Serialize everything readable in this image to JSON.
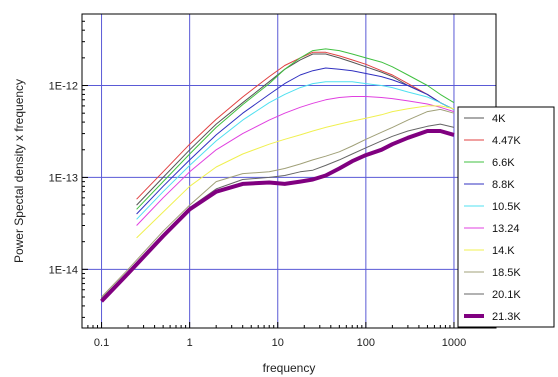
{
  "chart_data": {
    "type": "line",
    "xlabel": "frequency",
    "ylabel": "Power Spectal density x frequency",
    "xscale": "log",
    "yscale": "log",
    "xlim": [
      0.06,
      3000
    ],
    "ylim": [
      2.3e-15,
      6e-12
    ],
    "x_ticks": [
      0.1,
      1,
      10,
      100,
      1000
    ],
    "x_tick_labels": [
      "0.1",
      "1",
      "10",
      "100",
      "1000"
    ],
    "y_ticks": [
      1e-14,
      1e-13,
      1e-12
    ],
    "y_tick_labels": [
      "1E-14",
      "1E-13",
      "1E-12"
    ],
    "grid": true,
    "grid_color": "#5a5ad6",
    "legend_position": "right",
    "series": [
      {
        "name": "4K",
        "color": "#555555",
        "width": 1,
        "x": [
          0.25,
          0.5,
          1,
          2,
          4,
          8,
          12,
          18,
          25,
          35,
          50,
          70,
          100,
          150,
          200,
          300,
          500,
          700,
          1000
        ],
        "y": [
          5e-14,
          1e-13,
          2e-13,
          3.8e-13,
          6.5e-13,
          1.1e-12,
          1.5e-12,
          1.9e-12,
          2.2e-12,
          2.2e-12,
          2e-12,
          1.8e-12,
          1.6e-12,
          1.4e-12,
          1.25e-12,
          1e-12,
          8e-13,
          6.5e-13,
          5.5e-13
        ]
      },
      {
        "name": "4.47K",
        "color": "#e04040",
        "width": 1,
        "x": [
          0.25,
          0.5,
          1,
          2,
          4,
          8,
          12,
          18,
          25,
          35,
          50,
          70,
          100,
          150,
          200,
          300,
          500,
          700,
          1000
        ],
        "y": [
          5.8e-14,
          1.15e-13,
          2.3e-13,
          4.3e-13,
          7.5e-13,
          1.25e-12,
          1.65e-12,
          2e-12,
          2.3e-12,
          2.3e-12,
          2.1e-12,
          1.9e-12,
          1.7e-12,
          1.45e-12,
          1.3e-12,
          1.05e-12,
          8e-13,
          6.5e-13,
          5.5e-13
        ]
      },
      {
        "name": "6.6K",
        "color": "#40c040",
        "width": 1,
        "x": [
          0.25,
          0.5,
          1,
          2,
          4,
          8,
          12,
          18,
          25,
          35,
          50,
          70,
          100,
          150,
          200,
          300,
          500,
          700,
          1000
        ],
        "y": [
          4.5e-14,
          9e-14,
          1.8e-13,
          3.5e-13,
          6.2e-13,
          1.05e-12,
          1.5e-12,
          2e-12,
          2.4e-12,
          2.5e-12,
          2.4e-12,
          2.2e-12,
          2e-12,
          1.8e-12,
          1.6e-12,
          1.3e-12,
          1e-12,
          8e-13,
          6.5e-13
        ]
      },
      {
        "name": "8.8K",
        "color": "#3030c0",
        "width": 1,
        "x": [
          0.25,
          0.5,
          1,
          2,
          4,
          8,
          12,
          18,
          25,
          35,
          50,
          70,
          100,
          150,
          200,
          300,
          500,
          700,
          1000
        ],
        "y": [
          4e-14,
          8e-14,
          1.55e-13,
          2.9e-13,
          5e-13,
          8e-13,
          1.05e-12,
          1.3e-12,
          1.45e-12,
          1.55e-12,
          1.5e-12,
          1.45e-12,
          1.35e-12,
          1.25e-12,
          1.15e-12,
          1e-12,
          8e-13,
          6.5e-13,
          5.5e-13
        ]
      },
      {
        "name": "10.5K",
        "color": "#50e0f0",
        "width": 1,
        "x": [
          0.25,
          0.5,
          1,
          2,
          4,
          8,
          12,
          18,
          25,
          35,
          50,
          70,
          100,
          150,
          200,
          300,
          500,
          700,
          1000
        ],
        "y": [
          3.5e-14,
          7e-14,
          1.35e-13,
          2.5e-13,
          4.2e-13,
          6.5e-13,
          8e-13,
          9.5e-13,
          1.05e-12,
          1.1e-12,
          1.1e-12,
          1.1e-12,
          1.05e-12,
          1e-12,
          9.5e-13,
          8.5e-13,
          7.5e-13,
          6.5e-13,
          5.5e-13
        ]
      },
      {
        "name": "13.24",
        "color": "#e040e0",
        "width": 1,
        "x": [
          0.25,
          0.5,
          1,
          2,
          4,
          8,
          12,
          18,
          25,
          35,
          50,
          70,
          100,
          150,
          200,
          300,
          500,
          700,
          1000
        ],
        "y": [
          3e-14,
          6e-14,
          1.15e-13,
          2e-13,
          3e-13,
          4.2e-13,
          5e-13,
          5.8e-13,
          6.4e-13,
          7e-13,
          7.4e-13,
          7.6e-13,
          7.6e-13,
          7.4e-13,
          7.2e-13,
          6.8e-13,
          6.3e-13,
          5.8e-13,
          5.2e-13
        ]
      },
      {
        "name": "14.K",
        "color": "#f0f050",
        "width": 1,
        "x": [
          0.25,
          0.5,
          1,
          2,
          4,
          8,
          12,
          18,
          25,
          35,
          50,
          70,
          100,
          150,
          200,
          300,
          500,
          700,
          1000
        ],
        "y": [
          2.2e-14,
          4.2e-14,
          8e-14,
          1.3e-13,
          1.8e-13,
          2.3e-13,
          2.6e-13,
          2.9e-13,
          3.2e-13,
          3.5e-13,
          3.8e-13,
          4.1e-13,
          4.4e-13,
          4.8e-13,
          5.2e-13,
          5.6e-13,
          6e-13,
          6e-13,
          5.6e-13
        ]
      },
      {
        "name": "18.5K",
        "color": "#a0a078",
        "width": 1,
        "x": [
          0.1,
          0.2,
          0.5,
          1,
          2,
          4,
          8,
          12,
          18,
          25,
          35,
          50,
          70,
          100,
          150,
          200,
          300,
          500,
          700,
          1000
        ],
        "y": [
          5e-15,
          1e-14,
          2.6e-14,
          5e-14,
          9e-14,
          1.1e-13,
          1.15e-13,
          1.25e-13,
          1.4e-13,
          1.55e-13,
          1.7e-13,
          1.9e-13,
          2.2e-13,
          2.6e-13,
          3.1e-13,
          3.5e-13,
          4.2e-13,
          5.2e-13,
          5.5e-13,
          5e-13
        ]
      },
      {
        "name": "20.1K",
        "color": "#666666",
        "width": 1,
        "x": [
          0.1,
          0.2,
          0.5,
          1,
          2,
          4,
          8,
          12,
          18,
          25,
          35,
          50,
          70,
          100,
          150,
          200,
          300,
          500,
          700,
          1000
        ],
        "y": [
          4.8e-15,
          9.5e-15,
          2.4e-14,
          4.7e-14,
          7.5e-14,
          9.5e-14,
          1e-13,
          1.05e-13,
          1.15e-13,
          1.2e-13,
          1.35e-13,
          1.55e-13,
          1.8e-13,
          2.1e-13,
          2.5e-13,
          2.8e-13,
          3.2e-13,
          3.6e-13,
          3.8e-13,
          3.5e-13
        ]
      },
      {
        "name": "21.3K",
        "color": "#800080",
        "width": 4,
        "x": [
          0.1,
          0.2,
          0.5,
          1,
          2,
          4,
          8,
          12,
          18,
          25,
          35,
          50,
          70,
          100,
          150,
          200,
          300,
          500,
          700,
          1000
        ],
        "y": [
          4.5e-15,
          9e-15,
          2.3e-14,
          4.5e-14,
          7e-14,
          8.5e-14,
          8.8e-14,
          8.5e-14,
          9e-14,
          9.5e-14,
          1.05e-13,
          1.25e-13,
          1.5e-13,
          1.75e-13,
          2e-13,
          2.3e-13,
          2.7e-13,
          3.2e-13,
          3.2e-13,
          2.9e-13
        ]
      }
    ]
  }
}
